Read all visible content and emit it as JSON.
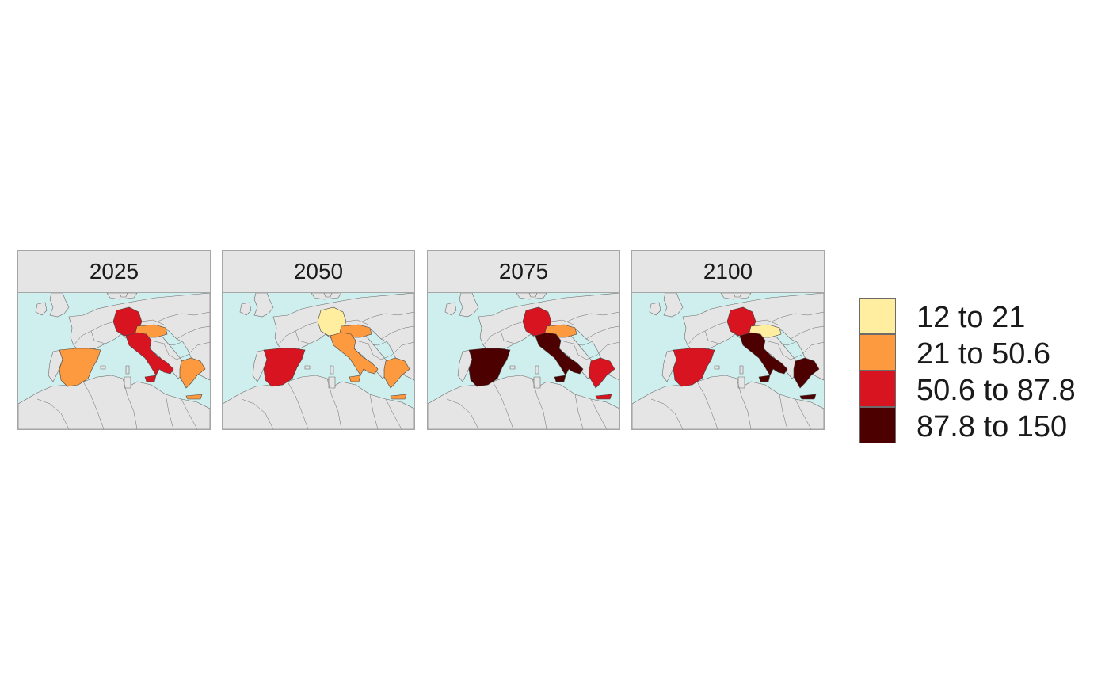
{
  "map": {
    "type": "choropleth",
    "region": "Western Mediterranean Europe",
    "sea_color": "#cfeeee",
    "land_color": "#e5e5e5",
    "border_color": "#6b6b6b",
    "panels": [
      {
        "label": "2025",
        "classes": {
          "germany": 2,
          "austria": 1,
          "spain": 1,
          "italy": 2,
          "greece": 1
        }
      },
      {
        "label": "2050",
        "classes": {
          "germany": 0,
          "austria": 1,
          "spain": 2,
          "italy": 1,
          "greece": 1
        }
      },
      {
        "label": "2075",
        "classes": {
          "germany": 2,
          "austria": 1,
          "spain": 3,
          "italy": 3,
          "greece": 2
        }
      },
      {
        "label": "2100",
        "classes": {
          "germany": 2,
          "austria": 0,
          "spain": 2,
          "italy": 3,
          "greece": 3
        }
      }
    ],
    "legend": [
      {
        "label": "12 to 21",
        "color": "#ffeda0"
      },
      {
        "label": "21 to 50.6",
        "color": "#fd9a3f"
      },
      {
        "label": "50.6 to 87.8",
        "color": "#d7141f"
      },
      {
        "label": "87.8 to 150",
        "color": "#4d0000"
      }
    ]
  }
}
